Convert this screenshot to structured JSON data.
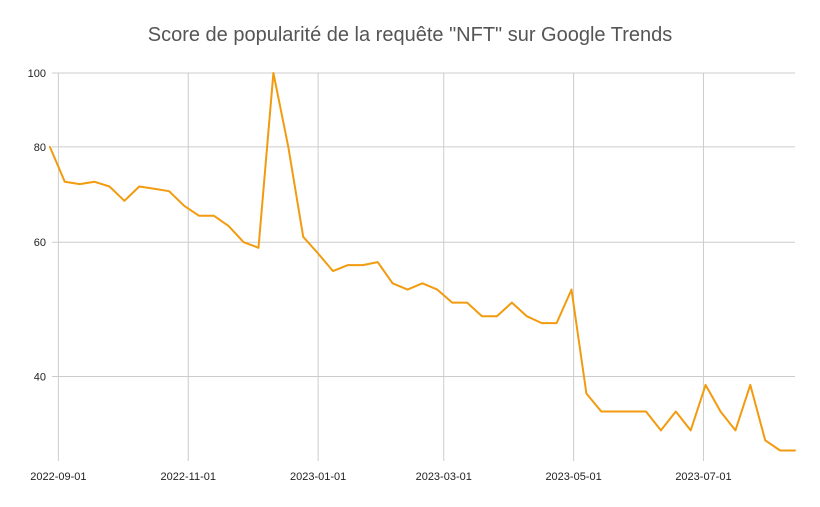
{
  "chart_data": {
    "type": "line",
    "title": "Score de popularité de la requête \"NFT\" sur Google Trends",
    "xlabel": "",
    "ylabel": "",
    "y_scale": "log",
    "ylim": [
      31,
      100
    ],
    "y_ticks": [
      40,
      60,
      80,
      100
    ],
    "x_ticks": [
      "2022-09-01",
      "2022-11-01",
      "2023-01-01",
      "2023-03-01",
      "2023-05-01",
      "2023-07-01"
    ],
    "xlim": [
      "2022-08-29",
      "2023-08-13"
    ],
    "grid": true,
    "legend": "none",
    "color": "#f29b0f",
    "series": [
      {
        "x": [
          "2022-08-28",
          "2022-09-04",
          "2022-09-11",
          "2022-09-18",
          "2022-09-25",
          "2022-10-02",
          "2022-10-09",
          "2022-10-16",
          "2022-10-23",
          "2022-10-30",
          "2022-11-06",
          "2022-11-13",
          "2022-11-20",
          "2022-11-27",
          "2022-12-04",
          "2022-12-11",
          "2022-12-18",
          "2022-12-25",
          "2023-01-01",
          "2023-01-08",
          "2023-01-15",
          "2023-01-22",
          "2023-01-29",
          "2023-02-05",
          "2023-02-12",
          "2023-02-19",
          "2023-02-26",
          "2023-03-05",
          "2023-03-12",
          "2023-03-19",
          "2023-03-26",
          "2023-04-02",
          "2023-04-09",
          "2023-04-16",
          "2023-04-23",
          "2023-04-30",
          "2023-05-07",
          "2023-05-14",
          "2023-05-21",
          "2023-05-28",
          "2023-06-04",
          "2023-06-11",
          "2023-06-18",
          "2023-06-25",
          "2023-07-02",
          "2023-07-09",
          "2023-07-16",
          "2023-07-23",
          "2023-07-30",
          "2023-08-06",
          "2023-08-13"
        ],
        "values": [
          80,
          72,
          71.5,
          72,
          71,
          68,
          71,
          70.5,
          70,
          67,
          65,
          65,
          63,
          60,
          59,
          100,
          80,
          61,
          58,
          55,
          56,
          56,
          56.5,
          53,
          52,
          53,
          52,
          50,
          50,
          48,
          48,
          50,
          48,
          47,
          47,
          52,
          38,
          36,
          36,
          36,
          36,
          34,
          36,
          34,
          39,
          36,
          34,
          39,
          33,
          32,
          32
        ]
      }
    ]
  }
}
